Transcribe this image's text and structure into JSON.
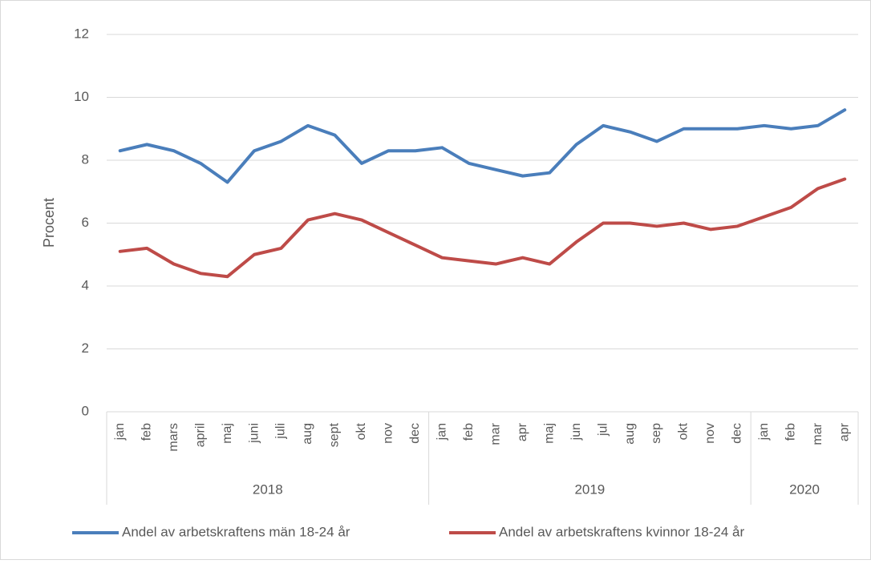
{
  "chart_data": {
    "type": "line",
    "y_label": "Procent",
    "categories_by_year": [
      {
        "year": "2018",
        "months": [
          "jan",
          "feb",
          "mars",
          "april",
          "maj",
          "juni",
          "juli",
          "aug",
          "sept",
          "okt",
          "nov",
          "dec"
        ]
      },
      {
        "year": "2019",
        "months": [
          "jan",
          "feb",
          "mar",
          "apr",
          "maj",
          "jun",
          "jul",
          "aug",
          "sep",
          "okt",
          "nov",
          "dec"
        ]
      },
      {
        "year": "2020",
        "months": [
          "jan",
          "feb",
          "mar",
          "apr"
        ]
      }
    ],
    "series": [
      {
        "name": "Andel av arbetskraftens män 18-24 år",
        "color": "#4a7ebb",
        "values": [
          8.3,
          8.5,
          8.3,
          7.9,
          7.3,
          8.3,
          8.6,
          9.1,
          8.8,
          7.9,
          8.3,
          8.3,
          8.4,
          7.9,
          7.7,
          7.5,
          7.6,
          8.5,
          9.1,
          8.9,
          8.6,
          9.0,
          9.0,
          9.0,
          9.1,
          9.0,
          9.1,
          9.6
        ]
      },
      {
        "name": "Andel av arbetskraftens kvinnor 18-24 år",
        "color": "#be4b48",
        "values": [
          5.1,
          5.2,
          4.7,
          4.4,
          4.3,
          5.0,
          5.2,
          6.1,
          6.3,
          6.1,
          5.7,
          5.3,
          4.9,
          4.8,
          4.7,
          4.9,
          4.7,
          5.4,
          6.0,
          6.0,
          5.9,
          6.0,
          5.8,
          5.9,
          6.2,
          6.5,
          7.1,
          7.4
        ]
      }
    ],
    "ylim": [
      0,
      12
    ],
    "yticks": [
      0,
      2,
      4,
      6,
      8,
      10,
      12
    ],
    "grid": true,
    "legend": "bottom"
  }
}
